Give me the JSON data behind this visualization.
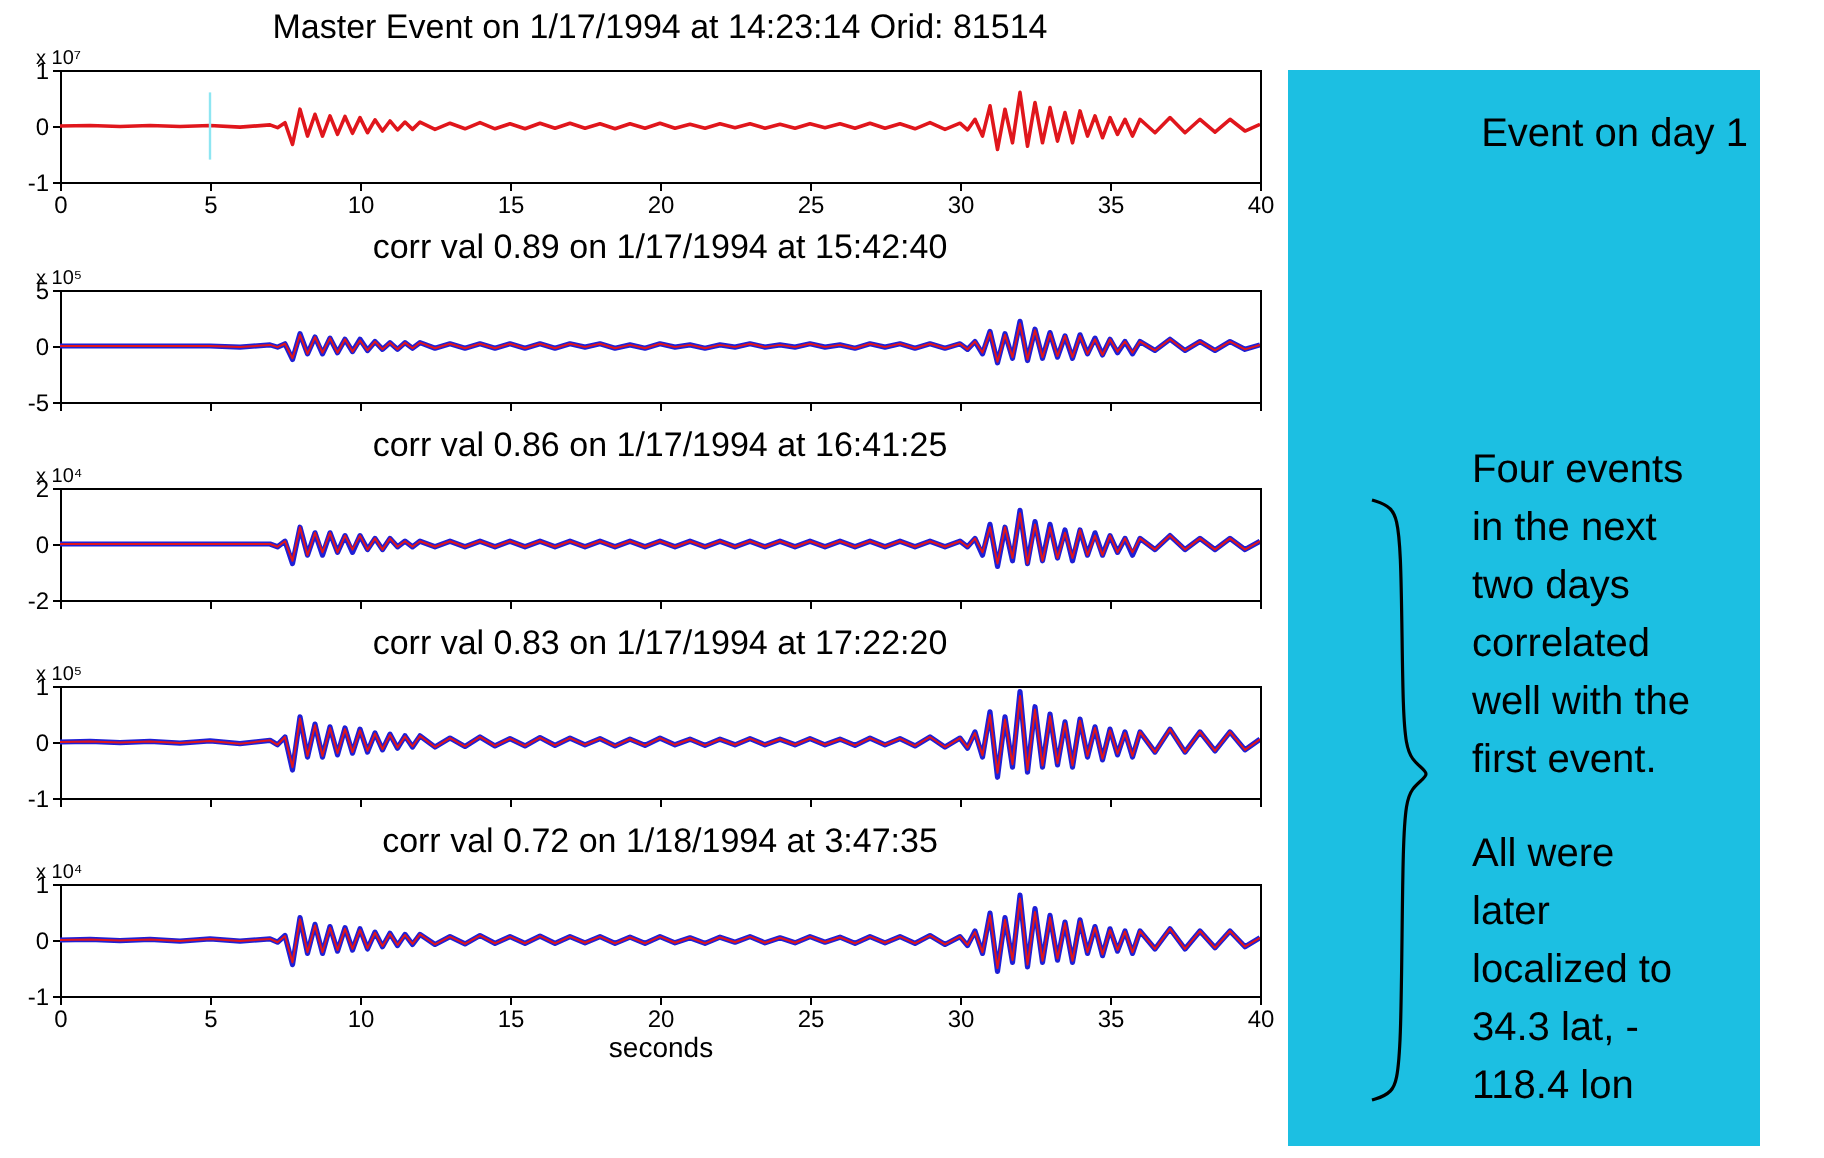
{
  "chart_data": [
    {
      "type": "line",
      "title": "Master Event on 1/17/1994 at 14:23:14 Orid: 81514",
      "ylabel": "x 10⁷",
      "xlim": [
        0,
        40
      ],
      "xticks": [
        0,
        5,
        10,
        15,
        20,
        25,
        30,
        35,
        40
      ],
      "ylim": [
        -1,
        1
      ],
      "yticks": [
        -1,
        0,
        1
      ],
      "annotations": [
        "Event on day 1",
        "Four events\nin the next\ntwo days\ncorrelated\nwell with the\nfirst event.",
        "All were\nlater\nlocalized to\n34.3 lat, -\n118.4 lon"
      ],
      "ref_lines": [
        {
          "axis": "x",
          "value": 5,
          "color": "#8ee6f2"
        }
      ],
      "x": [
        0,
        1,
        2,
        3,
        4,
        5,
        6,
        7,
        7.25,
        7.5,
        7.75,
        8,
        8.25,
        8.5,
        8.75,
        9,
        9.25,
        9.5,
        9.75,
        10,
        10.25,
        10.5,
        10.75,
        11,
        11.25,
        11.5,
        11.75,
        12,
        12.5,
        13,
        13.5,
        14,
        14.5,
        15,
        15.5,
        16,
        16.5,
        17,
        17.5,
        18,
        18.5,
        19,
        19.5,
        20,
        20.5,
        21,
        21.5,
        22,
        22.5,
        23,
        23.5,
        24,
        24.5,
        25,
        25.5,
        26,
        26.5,
        27,
        27.5,
        28,
        28.5,
        29,
        29.5,
        30,
        30.25,
        30.5,
        30.75,
        31,
        31.25,
        31.5,
        31.75,
        32,
        32.25,
        32.5,
        32.75,
        33,
        33.25,
        33.5,
        33.75,
        34,
        34.25,
        34.5,
        34.75,
        35,
        35.25,
        35.5,
        35.75,
        36,
        36.5,
        37,
        37.5,
        38,
        38.5,
        39,
        39.5,
        40
      ],
      "series": [
        {
          "color": "#e0161c",
          "values": [
            0,
            0.01,
            -0.01,
            0.01,
            -0.01,
            0.01,
            -0.02,
            0.02,
            -0.03,
            0.06,
            -0.33,
            0.3,
            -0.18,
            0.21,
            -0.18,
            0.18,
            -0.15,
            0.17,
            -0.13,
            0.15,
            -0.12,
            0.11,
            -0.09,
            0.09,
            -0.07,
            0.07,
            -0.06,
            0.07,
            -0.06,
            0.05,
            -0.05,
            0.06,
            -0.05,
            0.04,
            -0.05,
            0.05,
            -0.04,
            0.05,
            -0.04,
            0.04,
            -0.05,
            0.04,
            -0.04,
            0.05,
            -0.04,
            0.03,
            -0.04,
            0.04,
            -0.03,
            0.04,
            -0.04,
            0.03,
            -0.04,
            0.04,
            -0.03,
            0.04,
            -0.04,
            0.05,
            -0.04,
            0.04,
            -0.05,
            0.06,
            -0.06,
            0.05,
            -0.07,
            0.12,
            -0.18,
            0.36,
            -0.42,
            0.3,
            -0.3,
            0.6,
            -0.36,
            0.42,
            -0.3,
            0.33,
            -0.27,
            0.24,
            -0.3,
            0.27,
            -0.18,
            0.18,
            -0.21,
            0.15,
            -0.15,
            0.12,
            -0.18,
            0.12,
            -0.12,
            0.15,
            -0.12,
            0.12,
            -0.11,
            0.12,
            -0.09,
            0.03
          ]
        }
      ]
    },
    {
      "type": "line",
      "title": "corr val 0.89 on 1/17/1994 at 15:42:40",
      "ylabel": "x 10⁵",
      "xlim": [
        0,
        40
      ],
      "xticks": [
        0,
        5,
        10,
        15,
        20,
        25,
        30,
        35,
        40
      ],
      "ylim": [
        -5,
        5
      ],
      "yticks": [
        -5,
        0,
        5
      ],
      "tick_labels": "y",
      "x": [
        0,
        1,
        2,
        3,
        4,
        5,
        6,
        7,
        7.25,
        7.5,
        7.75,
        8,
        8.25,
        8.5,
        8.75,
        9,
        9.25,
        9.5,
        9.75,
        10,
        10.25,
        10.5,
        10.75,
        11,
        11.25,
        11.5,
        11.75,
        12,
        12.5,
        13,
        13.5,
        14,
        14.5,
        15,
        15.5,
        16,
        16.5,
        17,
        17.5,
        18,
        18.5,
        19,
        19.5,
        20,
        20.5,
        21,
        21.5,
        22,
        22.5,
        23,
        23.5,
        24,
        24.5,
        25,
        25.5,
        26,
        26.5,
        27,
        27.5,
        28,
        28.5,
        29,
        29.5,
        30,
        30.25,
        30.5,
        30.75,
        31,
        31.25,
        31.5,
        31.75,
        32,
        32.25,
        32.5,
        32.75,
        33,
        33.25,
        33.5,
        33.75,
        34,
        34.25,
        34.5,
        34.75,
        35,
        35.25,
        35.5,
        35.75,
        36,
        36.5,
        37,
        37.5,
        38,
        38.5,
        39,
        39.5,
        40
      ],
      "series": [
        {
          "color": "#1f1fd6",
          "values": [
            0,
            0,
            0,
            0,
            0,
            0,
            -0.1,
            0.1,
            -0.1,
            0.2,
            -1.2,
            1.1,
            -0.7,
            0.8,
            -0.7,
            0.7,
            -0.6,
            0.6,
            -0.5,
            0.6,
            -0.4,
            0.4,
            -0.3,
            0.3,
            -0.3,
            0.3,
            -0.2,
            0.3,
            -0.2,
            0.2,
            -0.2,
            0.2,
            -0.2,
            0.2,
            -0.2,
            0.2,
            -0.2,
            0.2,
            -0.1,
            0.2,
            -0.2,
            0.1,
            -0.2,
            0.2,
            -0.1,
            0.1,
            -0.2,
            0.1,
            -0.1,
            0.2,
            -0.1,
            0.1,
            -0.1,
            0.2,
            -0.1,
            0.1,
            -0.2,
            0.2,
            -0.1,
            0.2,
            -0.2,
            0.2,
            -0.2,
            0.2,
            -0.3,
            0.4,
            -0.7,
            1.3,
            -1.5,
            1.1,
            -1.1,
            2.2,
            -1.3,
            1.5,
            -1.1,
            1.2,
            -1.0,
            0.9,
            -1.1,
            1.0,
            -0.7,
            0.7,
            -0.8,
            0.6,
            -0.6,
            0.4,
            -0.7,
            0.4,
            -0.4,
            0.6,
            -0.4,
            0.4,
            -0.4,
            0.4,
            -0.3,
            0.1
          ]
        },
        {
          "color": "#e0161c",
          "values": [
            0,
            0,
            0,
            0,
            0,
            0,
            -0.1,
            0.1,
            -0.1,
            0.2,
            -1.1,
            1.0,
            -0.7,
            0.8,
            -0.6,
            0.7,
            -0.6,
            0.6,
            -0.5,
            0.5,
            -0.4,
            0.4,
            -0.3,
            0.3,
            -0.3,
            0.3,
            -0.2,
            0.3,
            -0.2,
            0.2,
            -0.2,
            0.2,
            -0.2,
            0.2,
            -0.2,
            0.2,
            -0.2,
            0.2,
            -0.1,
            0.2,
            -0.2,
            0.1,
            -0.2,
            0.2,
            -0.1,
            0.1,
            -0.2,
            0.1,
            -0.1,
            0.2,
            -0.1,
            0.1,
            -0.1,
            0.2,
            -0.1,
            0.1,
            -0.2,
            0.2,
            -0.1,
            0.2,
            -0.2,
            0.2,
            -0.2,
            0.2,
            -0.3,
            0.4,
            -0.6,
            1.2,
            -1.4,
            1.0,
            -1.0,
            2.0,
            -1.2,
            1.4,
            -1.0,
            1.1,
            -0.9,
            0.9,
            -1.0,
            0.9,
            -0.7,
            0.6,
            -0.8,
            0.6,
            -0.5,
            0.4,
            -0.6,
            0.4,
            -0.4,
            0.6,
            -0.4,
            0.4,
            -0.4,
            0.4,
            -0.3,
            0.1
          ]
        }
      ]
    },
    {
      "type": "line",
      "title": "corr val 0.86 on 1/17/1994 at 16:41:25",
      "ylabel": "x 10⁴",
      "xlim": [
        0,
        40
      ],
      "xticks": [
        0,
        5,
        10,
        15,
        20,
        25,
        30,
        35,
        40
      ],
      "ylim": [
        -2,
        2
      ],
      "yticks": [
        -2,
        0,
        2
      ],
      "tick_labels": "y",
      "x": [
        0,
        1,
        2,
        3,
        4,
        5,
        6,
        7,
        7.25,
        7.5,
        7.75,
        8,
        8.25,
        8.5,
        8.75,
        9,
        9.25,
        9.5,
        9.75,
        10,
        10.25,
        10.5,
        10.75,
        11,
        11.25,
        11.5,
        11.75,
        12,
        12.5,
        13,
        13.5,
        14,
        14.5,
        15,
        15.5,
        16,
        16.5,
        17,
        17.5,
        18,
        18.5,
        19,
        19.5,
        20,
        20.5,
        21,
        21.5,
        22,
        22.5,
        23,
        23.5,
        24,
        24.5,
        25,
        25.5,
        26,
        26.5,
        27,
        27.5,
        28,
        28.5,
        29,
        29.5,
        30,
        30.25,
        30.5,
        30.75,
        31,
        31.25,
        31.5,
        31.75,
        32,
        32.25,
        32.5,
        32.75,
        33,
        33.25,
        33.5,
        33.75,
        34,
        34.25,
        34.5,
        34.75,
        35,
        35.25,
        35.5,
        35.75,
        36,
        36.5,
        37,
        37.5,
        38,
        38.5,
        39,
        39.5,
        40
      ],
      "series": [
        {
          "color": "#1f1fd6",
          "values": [
            0,
            0,
            0,
            0,
            0,
            0,
            0,
            0,
            -0.1,
            0.1,
            -0.7,
            0.6,
            -0.4,
            0.4,
            -0.4,
            0.4,
            -0.3,
            0.3,
            -0.3,
            0.3,
            -0.2,
            0.2,
            -0.2,
            0.2,
            -0.1,
            0.1,
            -0.1,
            0.1,
            -0.1,
            0.1,
            -0.1,
            0.1,
            -0.1,
            0.1,
            -0.1,
            0.1,
            -0.1,
            0.1,
            -0.1,
            0.1,
            -0.1,
            0.1,
            -0.1,
            0.1,
            -0.1,
            0.1,
            -0.1,
            0.1,
            -0.1,
            0.1,
            -0.1,
            0.1,
            -0.1,
            0.1,
            -0.1,
            0.1,
            -0.1,
            0.1,
            -0.1,
            0.1,
            -0.1,
            0.1,
            -0.1,
            0.1,
            -0.1,
            0.2,
            -0.4,
            0.7,
            -0.8,
            0.6,
            -0.6,
            1.2,
            -0.7,
            0.8,
            -0.6,
            0.7,
            -0.5,
            0.5,
            -0.6,
            0.5,
            -0.4,
            0.4,
            -0.4,
            0.3,
            -0.3,
            0.2,
            -0.4,
            0.2,
            -0.2,
            0.3,
            -0.2,
            0.2,
            -0.2,
            0.2,
            -0.2,
            0.1
          ]
        },
        {
          "color": "#e0161c",
          "values": [
            0,
            0,
            0,
            0,
            0,
            0,
            0,
            0,
            -0.1,
            0.1,
            -0.6,
            0.6,
            -0.4,
            0.4,
            -0.3,
            0.4,
            -0.3,
            0.3,
            -0.2,
            0.3,
            -0.2,
            0.2,
            -0.2,
            0.2,
            -0.1,
            0.1,
            -0.1,
            0.1,
            -0.1,
            0.1,
            -0.1,
            0.1,
            -0.1,
            0.1,
            -0.1,
            0.1,
            -0.1,
            0.1,
            -0.1,
            0.1,
            -0.1,
            0.1,
            -0.1,
            0.1,
            -0.1,
            0.1,
            -0.1,
            0.1,
            -0.1,
            0.1,
            -0.1,
            0.1,
            -0.1,
            0.1,
            -0.1,
            0.1,
            -0.1,
            0.1,
            -0.1,
            0.1,
            -0.1,
            0.1,
            -0.1,
            0.1,
            -0.1,
            0.2,
            -0.3,
            0.6,
            -0.7,
            0.6,
            -0.5,
            1.1,
            -0.7,
            0.7,
            -0.6,
            0.6,
            -0.5,
            0.4,
            -0.5,
            0.5,
            -0.4,
            0.3,
            -0.4,
            0.3,
            -0.3,
            0.2,
            -0.3,
            0.2,
            -0.2,
            0.3,
            -0.2,
            0.2,
            -0.2,
            0.2,
            -0.2,
            0.1
          ]
        }
      ]
    },
    {
      "type": "line",
      "title": "corr val 0.83 on 1/17/1994 at 17:22:20",
      "ylabel": "x 10⁵",
      "xlim": [
        0,
        40
      ],
      "xticks": [
        0,
        5,
        10,
        15,
        20,
        25,
        30,
        35,
        40
      ],
      "ylim": [
        -1,
        1
      ],
      "yticks": [
        -1,
        0,
        1
      ],
      "tick_labels": "y",
      "x": [
        0,
        1,
        2,
        3,
        4,
        5,
        6,
        7,
        7.25,
        7.5,
        7.75,
        8,
        8.25,
        8.5,
        8.75,
        9,
        9.25,
        9.5,
        9.75,
        10,
        10.25,
        10.5,
        10.75,
        11,
        11.25,
        11.5,
        11.75,
        12,
        12.5,
        13,
        13.5,
        14,
        14.5,
        15,
        15.5,
        16,
        16.5,
        17,
        17.5,
        18,
        18.5,
        19,
        19.5,
        20,
        20.5,
        21,
        21.5,
        22,
        22.5,
        23,
        23.5,
        24,
        24.5,
        25,
        25.5,
        26,
        26.5,
        27,
        27.5,
        28,
        28.5,
        29,
        29.5,
        30,
        30.25,
        30.5,
        30.75,
        31,
        31.25,
        31.5,
        31.75,
        32,
        32.25,
        32.5,
        32.75,
        33,
        33.25,
        33.5,
        33.75,
        34,
        34.25,
        34.5,
        34.75,
        35,
        35.25,
        35.5,
        35.75,
        36,
        36.5,
        37,
        37.5,
        38,
        38.5,
        39,
        39.5,
        40
      ],
      "series": [
        {
          "color": "#1f1fd6",
          "values": [
            0,
            0.01,
            -0.01,
            0.01,
            -0.02,
            0.02,
            -0.03,
            0.03,
            -0.05,
            0.09,
            -0.5,
            0.45,
            -0.27,
            0.32,
            -0.27,
            0.27,
            -0.23,
            0.25,
            -0.2,
            0.23,
            -0.18,
            0.16,
            -0.14,
            0.14,
            -0.11,
            0.11,
            -0.09,
            0.11,
            -0.09,
            0.07,
            -0.08,
            0.09,
            -0.07,
            0.06,
            -0.07,
            0.08,
            -0.06,
            0.07,
            -0.05,
            0.06,
            -0.07,
            0.05,
            -0.06,
            0.07,
            -0.05,
            0.05,
            -0.06,
            0.05,
            -0.05,
            0.06,
            -0.05,
            0.05,
            -0.05,
            0.06,
            -0.05,
            0.05,
            -0.06,
            0.07,
            -0.05,
            0.06,
            -0.07,
            0.09,
            -0.09,
            0.07,
            -0.11,
            0.18,
            -0.27,
            0.54,
            -0.63,
            0.45,
            -0.45,
            0.9,
            -0.54,
            0.63,
            -0.45,
            0.5,
            -0.41,
            0.36,
            -0.45,
            0.41,
            -0.27,
            0.27,
            -0.32,
            0.23,
            -0.23,
            0.18,
            -0.27,
            0.18,
            -0.18,
            0.23,
            -0.18,
            0.18,
            -0.16,
            0.18,
            -0.14,
            0.05
          ]
        },
        {
          "color": "#e0161c",
          "values": [
            0,
            0.01,
            -0.01,
            0.01,
            -0.02,
            0.02,
            -0.03,
            0.03,
            -0.05,
            0.09,
            -0.45,
            0.42,
            -0.25,
            0.3,
            -0.25,
            0.25,
            -0.2,
            0.23,
            -0.18,
            0.21,
            -0.16,
            0.15,
            -0.13,
            0.13,
            -0.1,
            0.1,
            -0.08,
            0.11,
            -0.09,
            0.07,
            -0.08,
            0.09,
            -0.07,
            0.06,
            -0.07,
            0.08,
            -0.06,
            0.07,
            -0.05,
            0.06,
            -0.07,
            0.05,
            -0.06,
            0.07,
            -0.05,
            0.05,
            -0.06,
            0.05,
            -0.05,
            0.06,
            -0.05,
            0.05,
            -0.05,
            0.06,
            -0.05,
            0.05,
            -0.06,
            0.07,
            -0.05,
            0.06,
            -0.07,
            0.09,
            -0.09,
            0.07,
            -0.1,
            0.16,
            -0.24,
            0.48,
            -0.55,
            0.4,
            -0.4,
            0.82,
            -0.5,
            0.58,
            -0.42,
            0.46,
            -0.38,
            0.33,
            -0.42,
            0.38,
            -0.25,
            0.25,
            -0.3,
            0.21,
            -0.21,
            0.16,
            -0.25,
            0.18,
            -0.18,
            0.23,
            -0.18,
            0.18,
            -0.16,
            0.18,
            -0.14,
            0.05
          ]
        }
      ]
    },
    {
      "type": "line",
      "title": "corr val 0.72 on 1/18/1994 at 3:47:35",
      "ylabel": "x 10⁴",
      "xlabel": "seconds",
      "xlim": [
        0,
        40
      ],
      "xticks": [
        0,
        5,
        10,
        15,
        20,
        25,
        30,
        35,
        40
      ],
      "ylim": [
        -1,
        1
      ],
      "yticks": [
        -1,
        0,
        1
      ],
      "x": [
        0,
        1,
        2,
        3,
        4,
        5,
        6,
        7,
        7.25,
        7.5,
        7.75,
        8,
        8.25,
        8.5,
        8.75,
        9,
        9.25,
        9.5,
        9.75,
        10,
        10.25,
        10.5,
        10.75,
        11,
        11.25,
        11.5,
        11.75,
        12,
        12.5,
        13,
        13.5,
        14,
        14.5,
        15,
        15.5,
        16,
        16.5,
        17,
        17.5,
        18,
        18.5,
        19,
        19.5,
        20,
        20.5,
        21,
        21.5,
        22,
        22.5,
        23,
        23.5,
        24,
        24.5,
        25,
        25.5,
        26,
        26.5,
        27,
        27.5,
        28,
        28.5,
        29,
        29.5,
        30,
        30.25,
        30.5,
        30.75,
        31,
        31.25,
        31.5,
        31.75,
        32,
        32.25,
        32.5,
        32.75,
        33,
        33.25,
        33.5,
        33.75,
        34,
        34.25,
        34.5,
        34.75,
        35,
        35.25,
        35.5,
        35.75,
        36,
        36.5,
        37,
        37.5,
        38,
        38.5,
        39,
        39.5,
        40
      ],
      "series": [
        {
          "color": "#1f1fd6",
          "values": [
            0,
            0.01,
            -0.01,
            0.01,
            -0.02,
            0.02,
            -0.02,
            0.02,
            -0.04,
            0.08,
            -0.44,
            0.4,
            -0.24,
            0.28,
            -0.24,
            0.24,
            -0.2,
            0.22,
            -0.18,
            0.2,
            -0.16,
            0.14,
            -0.12,
            0.12,
            -0.1,
            0.1,
            -0.08,
            0.1,
            -0.08,
            0.06,
            -0.07,
            0.08,
            -0.06,
            0.06,
            -0.06,
            0.07,
            -0.06,
            0.06,
            -0.05,
            0.06,
            -0.06,
            0.05,
            -0.06,
            0.06,
            -0.05,
            0.04,
            -0.06,
            0.05,
            -0.04,
            0.06,
            -0.05,
            0.04,
            -0.05,
            0.06,
            -0.04,
            0.05,
            -0.06,
            0.06,
            -0.05,
            0.06,
            -0.06,
            0.08,
            -0.08,
            0.06,
            -0.1,
            0.16,
            -0.24,
            0.48,
            -0.56,
            0.4,
            -0.4,
            0.8,
            -0.48,
            0.56,
            -0.4,
            0.44,
            -0.36,
            0.32,
            -0.4,
            0.36,
            -0.24,
            0.24,
            -0.28,
            0.2,
            -0.2,
            0.16,
            -0.24,
            0.16,
            -0.16,
            0.2,
            -0.16,
            0.16,
            -0.14,
            0.16,
            -0.12,
            0.04
          ]
        },
        {
          "color": "#e0161c",
          "values": [
            0,
            0.01,
            -0.01,
            0.01,
            -0.02,
            0.02,
            -0.02,
            0.02,
            -0.04,
            0.07,
            -0.4,
            0.37,
            -0.22,
            0.26,
            -0.22,
            0.22,
            -0.18,
            0.2,
            -0.16,
            0.18,
            -0.15,
            0.13,
            -0.11,
            0.11,
            -0.09,
            0.09,
            -0.07,
            0.1,
            -0.08,
            0.06,
            -0.07,
            0.08,
            -0.06,
            0.06,
            -0.06,
            0.07,
            -0.06,
            0.06,
            -0.05,
            0.06,
            -0.06,
            0.05,
            -0.06,
            0.06,
            -0.05,
            0.04,
            -0.06,
            0.05,
            -0.04,
            0.06,
            -0.05,
            0.04,
            -0.05,
            0.06,
            -0.04,
            0.05,
            -0.06,
            0.06,
            -0.05,
            0.06,
            -0.06,
            0.08,
            -0.08,
            0.06,
            -0.09,
            0.14,
            -0.22,
            0.44,
            -0.5,
            0.36,
            -0.36,
            0.74,
            -0.44,
            0.5,
            -0.37,
            0.4,
            -0.33,
            0.3,
            -0.37,
            0.33,
            -0.22,
            0.22,
            -0.26,
            0.18,
            -0.18,
            0.15,
            -0.22,
            0.16,
            -0.16,
            0.2,
            -0.16,
            0.16,
            -0.14,
            0.16,
            -0.12,
            0.04
          ]
        }
      ]
    }
  ]
}
